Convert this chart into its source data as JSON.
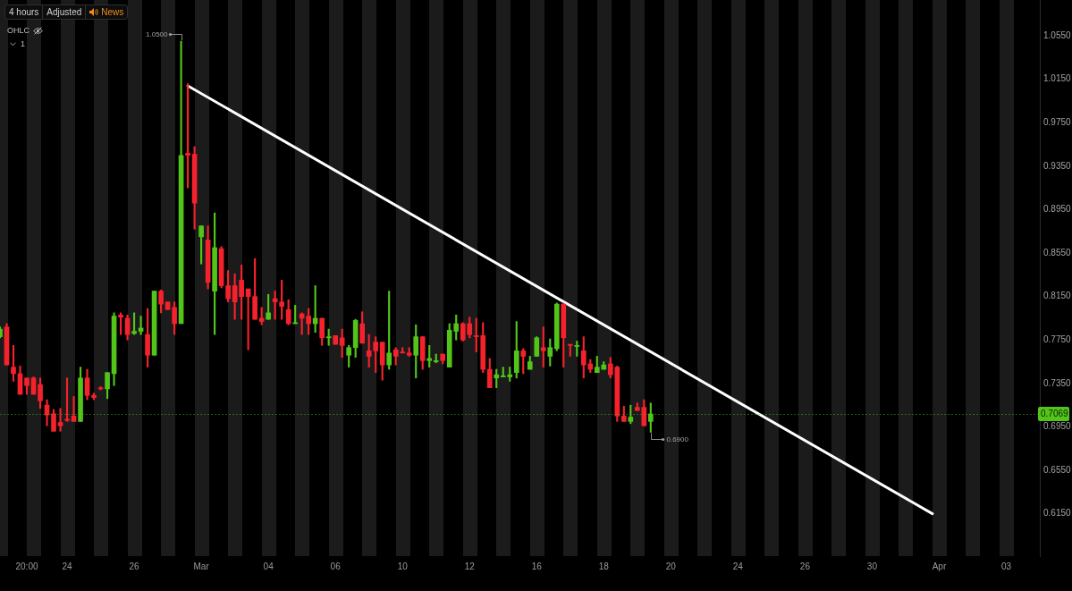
{
  "chart_data": {
    "type": "candlestick",
    "categories": [
      null,
      null,
      null,
      null,
      "20:00",
      null,
      null,
      null,
      null,
      null,
      "24",
      null,
      null,
      null,
      null,
      null,
      null,
      null,
      null,
      null,
      "26",
      null,
      null,
      null,
      null,
      null,
      null,
      null,
      null,
      null,
      "Mar",
      null,
      null,
      null,
      null,
      null,
      null,
      null,
      null,
      null,
      "04",
      null,
      null,
      null,
      null,
      null,
      null,
      null,
      null,
      null,
      "06",
      null,
      null,
      null,
      null,
      null,
      null,
      null,
      null,
      null,
      "10",
      null,
      null,
      null,
      null,
      null,
      null,
      null,
      null,
      null,
      "12",
      null,
      null,
      null,
      null,
      null,
      null,
      null,
      null,
      null,
      "16",
      null,
      null,
      null,
      null,
      null,
      null,
      null,
      null,
      null,
      "18",
      null,
      null,
      null,
      null,
      null,
      null,
      null,
      null,
      null,
      "20",
      null,
      null,
      null,
      null,
      null,
      null,
      null,
      null,
      null,
      "24",
      null,
      null,
      null,
      null,
      null,
      null,
      null,
      null,
      null,
      "26",
      null,
      null,
      null,
      null,
      null,
      null,
      null,
      null,
      null,
      "30",
      null,
      null,
      null,
      null,
      null,
      null,
      null,
      null,
      null,
      "Apr",
      null,
      null,
      null,
      null,
      null,
      null,
      null,
      null,
      null,
      "03",
      null,
      null,
      null,
      null,
      null
    ],
    "series": [
      {
        "ohlc": [
          [
            0.778,
            0.787,
            0.777,
            0.785
          ],
          [
            0.787,
            0.79,
            0.752,
            0.752
          ],
          [
            0.75,
            0.77,
            0.737,
            0.744
          ],
          [
            0.744,
            0.751,
            0.725,
            0.725
          ],
          [
            0.74,
            0.74,
            0.725,
            0.733
          ],
          [
            0.74,
            0.741,
            0.725,
            0.725
          ],
          [
            0.734,
            0.74,
            0.712,
            0.719
          ],
          [
            0.715,
            0.72,
            0.696,
            0.706
          ],
          [
            0.707,
            0.711,
            0.691,
            0.691
          ],
          [
            0.699,
            0.712,
            0.691,
            0.696
          ],
          [
            0.702,
            0.74,
            0.7,
            0.701
          ],
          [
            0.705,
            0.723,
            0.7,
            0.7
          ],
          [
            0.7,
            0.75,
            0.7,
            0.74
          ],
          [
            0.74,
            0.748,
            0.72,
            0.724
          ],
          [
            0.724,
            0.726,
            0.72,
            0.722
          ],
          [
            0.731,
            0.732,
            0.729,
            0.73
          ],
          [
            0.73,
            0.745,
            0.721,
            0.745
          ],
          [
            0.744,
            0.8,
            0.733,
            0.797
          ],
          [
            0.798,
            0.8,
            0.78,
            0.796
          ],
          [
            0.795,
            0.798,
            0.775,
            0.78
          ],
          [
            0.781,
            0.8,
            0.78,
            0.783
          ],
          [
            0.783,
            0.797,
            0.78,
            0.786
          ],
          [
            0.78,
            0.804,
            0.75,
            0.761
          ],
          [
            0.761,
            0.82,
            0.761,
            0.82
          ],
          [
            0.82,
            0.821,
            0.8,
            0.808
          ],
          [
            0.81,
            0.81,
            0.803,
            0.803
          ],
          [
            0.805,
            0.81,
            0.78,
            0.79
          ],
          [
            0.79,
            1.05,
            0.79,
            0.945
          ],
          [
            0.947,
            1.011,
            0.915,
            0.945
          ],
          [
            0.946,
            0.953,
            0.877,
            0.901
          ],
          [
            0.87,
            0.88,
            0.845,
            0.88
          ],
          [
            0.867,
            0.88,
            0.822,
            0.828
          ],
          [
            0.82,
            0.892,
            0.78,
            0.86
          ],
          [
            0.859,
            0.861,
            0.823,
            0.825
          ],
          [
            0.825,
            0.839,
            0.81,
            0.813
          ],
          [
            0.825,
            0.836,
            0.794,
            0.81
          ],
          [
            0.83,
            0.844,
            0.794,
            0.815
          ],
          [
            0.822,
            0.822,
            0.766,
            0.815
          ],
          [
            0.815,
            0.85,
            0.794,
            0.794
          ],
          [
            0.795,
            0.805,
            0.789,
            0.792
          ],
          [
            0.794,
            0.817,
            0.794,
            0.8
          ],
          [
            0.813,
            0.82,
            0.794,
            0.81
          ],
          [
            0.81,
            0.83,
            0.794,
            0.806
          ],
          [
            0.803,
            0.812,
            0.789,
            0.79
          ],
          [
            0.79,
            0.807,
            0.79,
            0.791
          ],
          [
            0.799,
            0.8,
            0.78,
            0.795
          ],
          [
            0.797,
            0.804,
            0.78,
            0.79
          ],
          [
            0.79,
            0.825,
            0.782,
            0.795
          ],
          [
            0.795,
            0.795,
            0.77,
            0.777
          ],
          [
            0.777,
            0.785,
            0.77,
            0.778
          ],
          [
            0.779,
            0.779,
            0.771,
            0.771
          ],
          [
            0.777,
            0.785,
            0.759,
            0.77
          ],
          [
            0.761,
            0.77,
            0.75,
            0.768
          ],
          [
            0.768,
            0.794,
            0.759,
            0.793
          ],
          [
            0.79,
            0.801,
            0.772,
            0.772
          ],
          [
            0.765,
            0.78,
            0.75,
            0.76
          ],
          [
            0.773,
            0.778,
            0.745,
            0.765
          ],
          [
            0.773,
            0.773,
            0.738,
            0.752
          ],
          [
            0.752,
            0.82,
            0.748,
            0.763
          ],
          [
            0.766,
            0.768,
            0.752,
            0.76
          ],
          [
            0.764,
            0.768,
            0.763,
            0.763
          ],
          [
            0.763,
            0.768,
            0.76,
            0.761
          ],
          [
            0.761,
            0.789,
            0.74,
            0.778
          ],
          [
            0.778,
            0.778,
            0.748,
            0.756
          ],
          [
            0.756,
            0.77,
            0.75,
            0.758
          ],
          [
            0.755,
            0.762,
            0.754,
            0.756
          ],
          [
            0.762,
            0.762,
            0.753,
            0.756
          ],
          [
            0.75,
            0.79,
            0.75,
            0.784
          ],
          [
            0.783,
            0.798,
            0.775,
            0.79
          ],
          [
            0.79,
            0.791,
            0.774,
            0.775
          ],
          [
            0.79,
            0.796,
            0.777,
            0.78
          ],
          [
            0.779,
            0.795,
            0.764,
            0.778
          ],
          [
            0.779,
            0.791,
            0.745,
            0.748
          ],
          [
            0.748,
            0.758,
            0.731,
            0.731
          ],
          [
            0.74,
            0.748,
            0.731,
            0.743
          ],
          [
            0.741,
            0.75,
            0.741,
            0.742
          ],
          [
            0.741,
            0.75,
            0.737,
            0.743
          ],
          [
            0.745,
            0.792,
            0.74,
            0.765
          ],
          [
            0.765,
            0.767,
            0.744,
            0.76
          ],
          [
            0.748,
            0.76,
            0.748,
            0.755
          ],
          [
            0.76,
            0.778,
            0.76,
            0.777
          ],
          [
            0.768,
            0.787,
            0.75,
            0.765
          ],
          [
            0.76,
            0.776,
            0.751,
            0.768
          ],
          [
            0.767,
            0.809,
            0.765,
            0.808
          ],
          [
            0.808,
            0.809,
            0.75,
            0.777
          ],
          [
            0.771,
            0.771,
            0.76,
            0.77
          ],
          [
            0.769,
            0.774,
            0.76,
            0.77
          ],
          [
            0.765,
            0.778,
            0.74,
            0.752
          ],
          [
            0.753,
            0.757,
            0.745,
            0.748
          ],
          [
            0.745,
            0.76,
            0.745,
            0.75
          ],
          [
            0.748,
            0.755,
            0.748,
            0.752
          ],
          [
            0.753,
            0.759,
            0.74,
            0.743
          ],
          [
            0.75,
            0.751,
            0.7,
            0.705
          ],
          [
            0.705,
            0.714,
            0.7,
            0.7
          ],
          [
            0.7,
            0.715,
            0.698,
            0.704
          ],
          [
            0.713,
            0.717,
            0.71,
            0.71
          ],
          [
            0.713,
            0.72,
            0.696,
            0.696
          ],
          [
            0.7,
            0.717,
            0.69,
            0.7069
          ],
          null,
          null,
          null,
          null,
          null,
          null,
          null,
          null,
          null,
          null,
          null,
          null,
          null,
          null,
          null,
          null,
          null,
          null,
          null,
          null,
          null,
          null,
          null,
          null,
          null,
          null,
          null,
          null,
          null,
          null,
          null,
          null,
          null,
          null,
          null,
          null,
          null,
          null,
          null,
          null,
          null,
          null,
          null,
          null,
          null,
          null,
          null,
          null,
          null,
          null,
          null,
          null,
          null,
          null,
          null,
          null,
          null,
          null
        ],
        "colors": [
          "#52c41a",
          "#f5222d",
          "#f5222d",
          "#f5222d",
          "#f5222d",
          "#f5222d",
          "#f5222d",
          "#f5222d",
          "#f5222d",
          "#f5222d",
          "#f5222d",
          "#f5222d",
          "#52c41a",
          "#f5222d",
          "#f5222d",
          "#f5222d",
          "#52c41a",
          "#52c41a",
          "#f5222d",
          "#f5222d",
          "#52c41a",
          "#52c41a",
          "#f5222d",
          "#52c41a",
          "#f5222d",
          "#f5222d",
          "#f5222d",
          "#52c41a",
          "#f5222d",
          "#f5222d",
          "#52c41a",
          "#f5222d",
          "#52c41a",
          "#f5222d",
          "#f5222d",
          "#f5222d",
          "#f5222d",
          "#f5222d",
          "#f5222d",
          "#f5222d",
          "#52c41a",
          "#f5222d",
          "#f5222d",
          "#f5222d",
          "#52c41a",
          "#f5222d",
          "#f5222d",
          "#52c41a",
          "#f5222d",
          "#52c41a",
          "#f5222d",
          "#f5222d",
          "#52c41a",
          "#52c41a",
          "#f5222d",
          "#f5222d",
          "#f5222d",
          "#f5222d",
          "#52c41a",
          "#f5222d",
          "#f5222d",
          "#f5222d",
          "#52c41a",
          "#f5222d",
          "#52c41a",
          "#52c41a",
          "#f5222d",
          "#52c41a",
          "#52c41a",
          "#f5222d",
          "#f5222d",
          "#f5222d",
          "#f5222d",
          "#f5222d",
          "#52c41a",
          "#52c41a",
          "#52c41a",
          "#52c41a",
          "#f5222d",
          "#52c41a",
          "#52c41a",
          "#f5222d",
          "#52c41a",
          "#52c41a",
          "#f5222d",
          "#f5222d",
          "#52c41a",
          "#f5222d",
          "#f5222d",
          "#52c41a",
          "#52c41a",
          "#f5222d",
          "#f5222d",
          "#f5222d",
          "#52c41a",
          "#f5222d",
          "#f5222d",
          "#52c41a",
          null,
          null,
          null,
          null,
          null,
          null,
          null,
          null,
          null,
          null,
          null,
          null,
          null,
          null,
          null,
          null,
          null,
          null,
          null,
          null,
          null,
          null,
          null,
          null,
          null,
          null,
          null,
          null,
          null,
          null,
          null,
          null,
          null,
          null,
          null,
          null,
          null,
          null,
          null,
          null,
          null,
          null,
          null,
          null,
          null,
          null,
          null,
          null,
          null,
          null,
          null,
          null,
          null,
          null,
          null,
          null,
          null,
          null
        ]
      },
      {
        "type": "line",
        "color": "#ffffff",
        "marker": "none",
        "values": [
          null,
          null,
          null,
          null,
          null,
          null,
          null,
          null,
          null,
          null,
          null,
          null,
          null,
          null,
          null,
          null,
          null,
          null,
          null,
          null,
          null,
          null,
          null,
          null,
          null,
          null,
          null,
          null,
          1.009,
          null,
          null,
          null,
          null,
          null,
          null,
          null,
          null,
          null,
          null,
          null,
          null,
          null,
          null,
          null,
          null,
          null,
          null,
          null,
          null,
          null,
          null,
          null,
          null,
          null,
          null,
          null,
          null,
          null,
          null,
          null,
          null,
          null,
          null,
          null,
          null,
          null,
          null,
          null,
          null,
          null,
          null,
          null,
          null,
          null,
          null,
          null,
          null,
          null,
          null,
          null,
          null,
          null,
          null,
          null,
          null,
          null,
          null,
          null,
          null,
          null,
          null,
          null,
          null,
          null,
          null,
          null,
          null,
          null,
          null,
          null,
          null,
          null,
          null,
          null,
          null,
          null,
          null,
          null,
          null,
          null,
          null,
          null,
          null,
          null,
          null,
          null,
          null,
          null,
          null,
          null,
          null,
          null,
          null,
          null,
          null,
          null,
          null,
          null,
          null,
          null,
          null,
          null,
          null,
          null,
          null,
          null,
          null,
          null,
          null,
          0.615,
          null,
          null,
          null,
          null,
          null,
          null,
          null,
          null,
          null,
          null,
          null,
          null,
          null,
          null,
          null,
          null
        ]
      }
    ],
    "ylim": [
      0.576,
      1.088
    ],
    "yticks": [
      {
        "value": 0.615,
        "label": "0.6150"
      },
      {
        "value": 0.655,
        "label": "0.6550"
      },
      {
        "value": 0.695,
        "label": "0.6950"
      },
      {
        "value": 0.735,
        "label": "0.7350"
      },
      {
        "value": 0.775,
        "label": "0.7750"
      },
      {
        "value": 0.815,
        "label": "0.8150"
      },
      {
        "value": 0.855,
        "label": "0.8550"
      },
      {
        "value": 0.895,
        "label": "0.8950"
      },
      {
        "value": 0.935,
        "label": "0.9350"
      },
      {
        "value": 0.975,
        "label": "0.9750"
      },
      {
        "value": 1.015,
        "label": "1.0150"
      },
      {
        "value": 1.055,
        "label": "1.0550"
      }
    ],
    "ref_lines": [
      {
        "axis": "y",
        "value": 0.7069,
        "label": "0.7069",
        "color": "#52c41a",
        "line_style": "dotted"
      }
    ],
    "annotations": [
      "4 hours",
      "Adjusted",
      "News",
      "OHLC",
      "1",
      "1.0500",
      "0.6900"
    ]
  }
}
